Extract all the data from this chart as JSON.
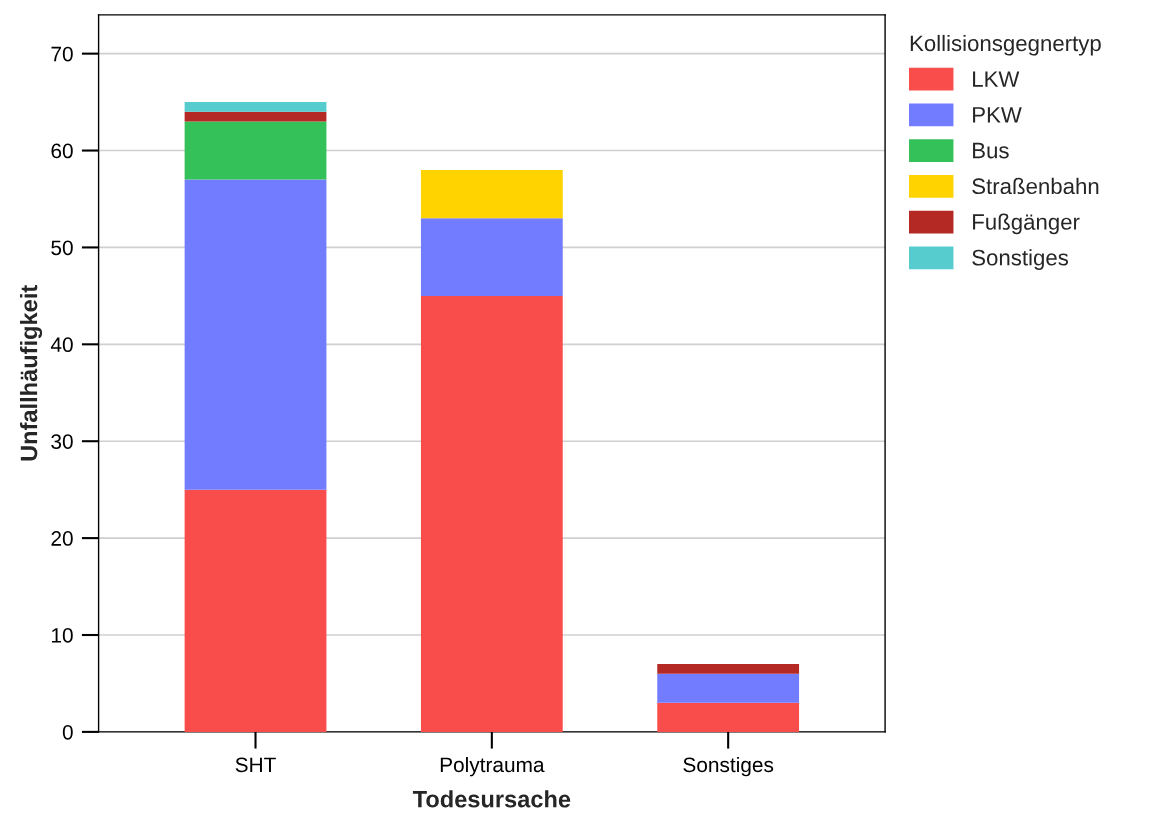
{
  "chart_data": {
    "type": "bar",
    "stacked": true,
    "xlabel": "Todesursache",
    "ylabel": "Unfallhäufigkeit",
    "legend_title": "Kollisionsgegnertyp",
    "categories": [
      "SHT",
      "Polytrauma",
      "Sonstiges"
    ],
    "series": [
      {
        "name": "LKW",
        "color": "#f84d4b",
        "values": [
          25,
          45,
          3
        ]
      },
      {
        "name": "PKW",
        "color": "#717cff",
        "values": [
          32,
          8,
          3
        ]
      },
      {
        "name": "Bus",
        "color": "#35c15a",
        "values": [
          6,
          0,
          0
        ]
      },
      {
        "name": "Straßenbahn",
        "color": "#ffd300",
        "values": [
          0,
          5,
          0
        ]
      },
      {
        "name": "Fußgänger",
        "color": "#b42923",
        "values": [
          1,
          0,
          1
        ]
      },
      {
        "name": "Sonstiges",
        "color": "#56cccf",
        "values": [
          1,
          0,
          0
        ]
      }
    ],
    "ylim": [
      0,
      74
    ],
    "yticks": [
      0,
      10,
      20,
      30,
      40,
      50,
      60,
      70
    ],
    "grid": "y",
    "legend": "top right"
  }
}
